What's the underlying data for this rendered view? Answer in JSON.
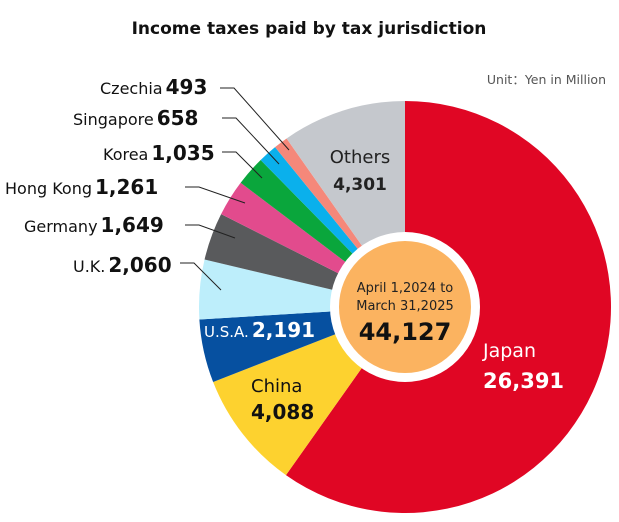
{
  "chart_data": {
    "type": "pie",
    "title": "Income taxes paid by tax jurisdiction",
    "unit_note": "Unit：Yen in Million",
    "center_label": [
      "April 1,2024 to",
      "March 31,2025"
    ],
    "total": "44,127",
    "slices": [
      {
        "label": "Japan",
        "value": 26391,
        "display": "26,391",
        "color": "#e00624"
      },
      {
        "label": "China",
        "value": 4088,
        "display": "4,088",
        "color": "#fdd22f"
      },
      {
        "label": "U.S.A.",
        "value": 2191,
        "display": "2,191",
        "color": "#0650a0"
      },
      {
        "label": "U.K.",
        "value": 2060,
        "display": "2,060",
        "color": "#bdeefb"
      },
      {
        "label": "Germany",
        "value": 1649,
        "display": "1,649",
        "color": "#595a5c"
      },
      {
        "label": "Hong Kong",
        "value": 1261,
        "display": "1,261",
        "color": "#e24b8d"
      },
      {
        "label": "Korea",
        "value": 1035,
        "display": "1,035",
        "color": "#0aa63c"
      },
      {
        "label": "Singapore",
        "value": 658,
        "display": "658",
        "color": "#0ab0ec"
      },
      {
        "label": "Czechia",
        "value": 493,
        "display": "493",
        "color": "#f5887a"
      },
      {
        "label": "Others",
        "value": 4301,
        "display": "4,301",
        "color": "#c5c8cd"
      }
    ],
    "center_color": "#fbb360"
  }
}
